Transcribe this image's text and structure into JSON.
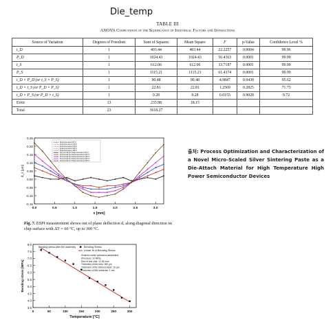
{
  "document_title": "Die_temp",
  "table": {
    "label": "TABLE III",
    "caption": "ANOVA Computation of the Significance of Individual Factors and Interactions",
    "headers": [
      "Source of Variation",
      "Degrees of Freedom",
      "Sum of Squares",
      "Mean Square",
      "F",
      "p-Value",
      "Confidence Level %"
    ],
    "rows": [
      [
        "t_D",
        "1",
        "403.44",
        "403.44",
        "22.2257",
        "0.0004",
        "99.96"
      ],
      [
        "P_D",
        "1",
        "1024.43",
        "1024.43",
        "56.4363",
        "0.0001",
        "99.99"
      ],
      [
        "t_S",
        "1",
        "612.06",
        "612.06",
        "33.7187",
        "0.0001",
        "99.99"
      ],
      [
        "P_S",
        "1",
        "1115.21",
        "1115.21",
        "61.4374",
        "0.0001",
        "99.99"
      ],
      [
        "t_D × P_D (or t_S × P_S)",
        "1",
        "90.48",
        "90.48",
        "4.9847",
        "0.0438",
        "95.62"
      ],
      [
        "t_D × t_S (or P_D × P_S)",
        "1",
        "22.81",
        "22.81",
        "1.2569",
        "0.2825",
        "71.75"
      ],
      [
        "t_D × P_S (or P_D × t_S)",
        "1",
        "0.28",
        "0.28",
        "0.0155",
        "0.9028",
        "9.72"
      ],
      [
        "Error",
        "13",
        "235.98",
        "18.15",
        "",
        "",
        ""
      ],
      [
        "Total",
        "23",
        "3618.27",
        "",
        "",
        "",
        ""
      ]
    ]
  },
  "chart_data": [
    {
      "type": "line",
      "xlabel": "x [mm]",
      "ylabel": "d_z [μm]",
      "xlim": [
        0,
        3.2
      ],
      "ylim": [
        -0.15,
        0.25
      ],
      "x_ticks": [
        "0.0",
        "0.5",
        "1.0",
        "1.5",
        "2.0",
        "2.5",
        "3.0"
      ],
      "y_ticks": [
        "-0.15",
        "-0.10",
        "-0.05",
        "0.00",
        "0.05",
        "0.10",
        "0.15",
        "0.20",
        "0.25"
      ],
      "x": [
        0.0,
        0.2,
        0.4,
        0.6,
        0.8,
        1.0,
        1.2,
        1.4,
        1.6,
        1.8,
        2.0,
        2.2,
        2.4,
        2.6,
        2.8,
        3.0,
        3.2
      ],
      "legend": [
        "Experimental at 60°C",
        "Experimental at 100°C",
        "Experimental at 150°C",
        "Experimental at 200°C",
        "Experimental at 300°C",
        "Polynomial fit of Experimental at 60°C",
        "Polynomial fit of Experimental at 100°C",
        "Polynomial fit of Experimental at 150°C",
        "Polynomial fit of Experimental at 200°C",
        "Polynomial fit of Experimental at 300°C"
      ],
      "colors": [
        "#111111",
        "#d22020",
        "#2a3fd0",
        "#c020c0",
        "#7a3a10"
      ],
      "series": [
        {
          "name": "Experimental at 60°C",
          "values": [
            0.02,
            0.01,
            0.0,
            0.0,
            0.01,
            -0.01,
            0.0,
            0.01,
            0.0,
            -0.01,
            0.0,
            0.01,
            -0.01,
            0.0,
            0.01,
            0.0,
            0.02
          ]
        },
        {
          "name": "Experimental at 100°C",
          "values": [
            0.07,
            0.05,
            0.03,
            0.01,
            -0.01,
            -0.03,
            -0.04,
            -0.04,
            -0.05,
            -0.04,
            -0.04,
            -0.03,
            -0.02,
            0.0,
            0.02,
            0.04,
            0.06
          ]
        },
        {
          "name": "Experimental at 150°C",
          "values": [
            0.1,
            0.08,
            0.05,
            0.02,
            -0.01,
            -0.03,
            -0.05,
            -0.06,
            -0.06,
            -0.06,
            -0.05,
            -0.04,
            -0.02,
            0.01,
            0.04,
            0.07,
            0.09
          ]
        },
        {
          "name": "Experimental at 200°C",
          "values": [
            0.15,
            0.11,
            0.07,
            0.03,
            0.0,
            -0.04,
            -0.06,
            -0.08,
            -0.08,
            -0.08,
            -0.07,
            -0.05,
            -0.02,
            0.02,
            0.06,
            0.1,
            0.14
          ]
        },
        {
          "name": "Experimental at 300°C",
          "values": [
            0.22,
            0.17,
            0.11,
            0.05,
            0.0,
            -0.04,
            -0.08,
            -0.1,
            -0.11,
            -0.1,
            -0.09,
            -0.06,
            -0.02,
            0.04,
            0.1,
            0.16,
            0.21
          ]
        }
      ]
    },
    {
      "type": "scatter",
      "xlabel": "Temperature [°C]",
      "ylabel": "Bending stress [MPa]",
      "xlim": [
        0,
        320
      ],
      "ylim": [
        3.5,
        8.0
      ],
      "x_ticks": [
        "0",
        "50",
        "100",
        "150",
        "200",
        "250",
        "300"
      ],
      "y_ticks": [
        "3.5",
        "4.0",
        "4.5",
        "5.0",
        "5.5",
        "6.0",
        "6.5",
        "7.0",
        "7.5",
        "8.0"
      ],
      "annotation": "Bending stress after the assembly",
      "legend": [
        "Bending Stress",
        "Linear fit of Bending Stress"
      ],
      "notes": [
        "Sintered under optimized parameters",
        "(Pressure: 10 MPa)",
        "Size of test chip: 12.25 mm²",
        "Thickness of test chip: 380 μm",
        "Thickness of the sintered layer: 10 μm",
        "Thickness of AlN substrate: 1 mm"
      ],
      "x": [
        25,
        50,
        75,
        100,
        125,
        150,
        175,
        200,
        225,
        250,
        275,
        300
      ],
      "values": [
        7.6,
        7.4,
        7.1,
        6.85,
        6.6,
        6.2,
        5.6,
        5.35,
        5.1,
        4.75,
        4.2,
        3.95
      ],
      "fit": {
        "x": [
          25,
          300
        ],
        "values": [
          7.75,
          3.9
        ]
      }
    }
  ],
  "figure_caption": {
    "label": "Fig. 7.",
    "text": "ESPI measurement shows out of plane deflection d, along diagonal direction on chip surface with ΔT = 60 °C, up to 300 °C."
  },
  "source_note": "출처: Process Optimization and Characterization of a Novel Micro-Scaled Silver Sintering Paste as a Die-Attach Material for High Temperature High Power Semiconductor Devices"
}
